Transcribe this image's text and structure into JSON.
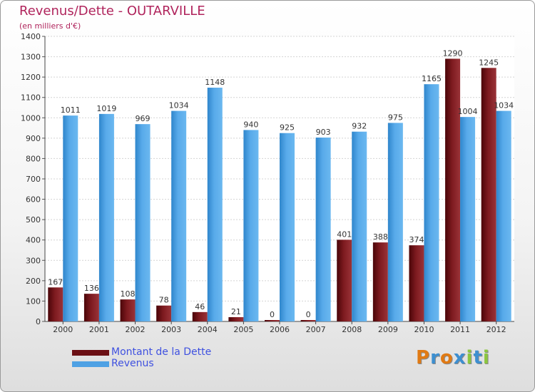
{
  "header": {
    "title": "Revenus/Dette - OUTARVILLE",
    "subtitle": "(en milliers d'€)"
  },
  "legend": {
    "items": [
      {
        "label": "Montant de la Dette",
        "color": "#6b0f14"
      },
      {
        "label": "Revenus",
        "color": "#4ea1e4"
      }
    ]
  },
  "logo": {
    "letters": [
      "P",
      "r",
      "o",
      "x",
      "i",
      "t",
      "i"
    ],
    "colors": [
      "#e07a14",
      "#3d8fd0",
      "#e07a14",
      "#3d8fd0",
      "#8cc63f",
      "#3d8fd0",
      "#8cc63f"
    ]
  },
  "chart_data": {
    "type": "bar",
    "categories": [
      "2000",
      "2001",
      "2002",
      "2003",
      "2004",
      "2005",
      "2006",
      "2007",
      "2008",
      "2009",
      "2010",
      "2011",
      "2012"
    ],
    "series": [
      {
        "name": "Montant de la Dette",
        "color": "#6b0f14",
        "values": [
          167,
          136,
          108,
          78,
          46,
          21,
          0,
          0,
          401,
          388,
          374,
          1290,
          1245
        ]
      },
      {
        "name": "Revenus",
        "color": "#4ea1e4",
        "values": [
          1011,
          1019,
          969,
          1034,
          1148,
          940,
          925,
          903,
          932,
          975,
          1165,
          1004,
          1034
        ]
      }
    ],
    "ylim": [
      0,
      1400
    ],
    "yticks": [
      0,
      100,
      200,
      300,
      400,
      500,
      600,
      700,
      800,
      900,
      1000,
      1100,
      1200,
      1300,
      1400
    ],
    "grid": true,
    "legend_position": "bottom-left"
  }
}
